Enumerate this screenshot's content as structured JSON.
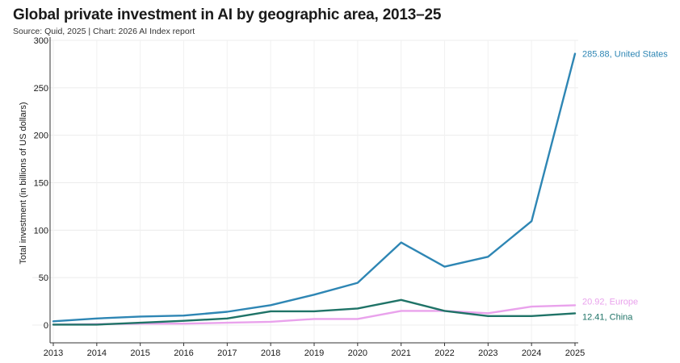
{
  "header": {
    "title": "Global private investment in AI by geographic area, 2013–25",
    "subtitle": "Source: Quid, 2025 | Chart: 2026 AI Index report"
  },
  "chart_data": {
    "type": "line",
    "title": "Global private investment in AI by geographic area, 2013–25",
    "ylabel": "Total investment (in billions of US dollars)",
    "xlabel": "",
    "x": [
      2013,
      2014,
      2015,
      2016,
      2017,
      2018,
      2019,
      2020,
      2021,
      2022,
      2023,
      2024,
      2025
    ],
    "xlim": [
      2013,
      2025
    ],
    "ylim": [
      0,
      300
    ],
    "yticks": [
      0,
      50,
      100,
      150,
      200,
      250,
      300
    ],
    "grid": "vertical and horizontal, light",
    "legend": "direct end labels at right",
    "series": [
      {
        "name": "United States",
        "color": "#2e86b4",
        "values": [
          4.0,
          7.0,
          9.0,
          10.0,
          14.0,
          21.0,
          32.0,
          44.5,
          87.0,
          61.5,
          72.0,
          109.5,
          285.88
        ],
        "end_label": "285.88, United States"
      },
      {
        "name": "Europe",
        "color": "#e9a2ec",
        "values": [
          0.5,
          1.0,
          1.5,
          1.5,
          2.5,
          3.5,
          6.5,
          6.5,
          15.0,
          15.0,
          12.5,
          19.5,
          20.92
        ],
        "end_label": "20.92, Europe"
      },
      {
        "name": "China",
        "color": "#1f7367",
        "values": [
          0.5,
          0.5,
          2.5,
          4.5,
          7.0,
          14.5,
          14.5,
          17.5,
          26.5,
          15.0,
          9.5,
          9.5,
          12.41
        ],
        "end_label": "12.41, China"
      }
    ]
  }
}
